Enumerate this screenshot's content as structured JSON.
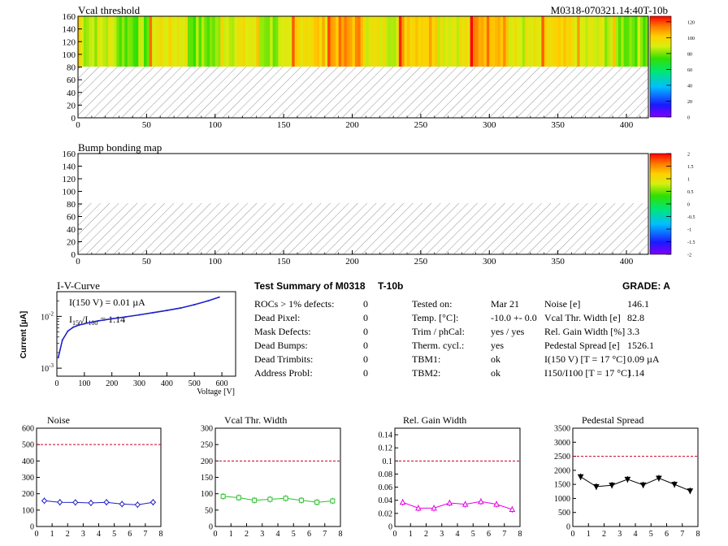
{
  "header": {
    "module_id": "M0318-070321.14:40T-10b"
  },
  "colors": {
    "hatch": "#7a7a7a",
    "noise_line": "#1e1ec8",
    "vcal_line": "#2fbf2f",
    "gain_line": "#e600e6",
    "ped_line": "#000000",
    "cut_line": "#c8001e",
    "iv_line": "#1e1ec8"
  },
  "heatmaps": [
    {
      "title": "Vcal threshold",
      "x_range": [
        0,
        416
      ],
      "y_range": [
        0,
        160
      ],
      "x_ticks": [
        "0",
        "50",
        "100",
        "150",
        "200",
        "250",
        "300",
        "350",
        "400"
      ],
      "y_ticks": [
        "0",
        "20",
        "40",
        "60",
        "80",
        "100",
        "120",
        "140",
        "160"
      ],
      "filled_rows": [
        80,
        160
      ],
      "roc_column_means": [
        88,
        80,
        94,
        80,
        92,
        84,
        100,
        108,
        92,
        104,
        94,
        110,
        90,
        96,
        88,
        82
      ],
      "palette_max": 127,
      "colorbar_ticks": [
        "0",
        "20",
        "40",
        "60",
        "80",
        "100",
        "120"
      ]
    },
    {
      "title": "Bump bonding map",
      "x_range": [
        0,
        416
      ],
      "y_range": [
        0,
        160
      ],
      "x_ticks": [
        "0",
        "50",
        "100",
        "150",
        "200",
        "250",
        "300",
        "350",
        "400"
      ],
      "y_ticks": [
        "0",
        "20",
        "40",
        "60",
        "80",
        "100",
        "120",
        "140",
        "160"
      ],
      "filled_rows": [
        80,
        160
      ],
      "palette_max": 2,
      "colorbar_ticks": [
        "-2",
        "-1.5",
        "-1",
        "-0.5",
        "0",
        "0.5",
        "1",
        "1.5",
        "2"
      ]
    }
  ],
  "iv_curve": {
    "title": "I-V-Curve",
    "ylabel": "Current [µA]",
    "xlabel": "Voltage [V]",
    "x_ticks": [
      "0",
      "100",
      "200",
      "300",
      "400",
      "500",
      "600"
    ],
    "annotation_1": "I(150 V) = 0.01 µA",
    "annotation_2a": "I",
    "annotation_2b": "150",
    "annotation_2c": "/I",
    "annotation_2d": "100",
    "annotation_2e": " = 1.14"
  },
  "summary": {
    "title": "Test Summary of M0318",
    "tag": "T-10b",
    "grade": "GRADE:  A",
    "left_rows": [
      {
        "label": "ROCs > 1% defects:",
        "value": "0"
      },
      {
        "label": "Dead Pixel:",
        "value": "0"
      },
      {
        "label": "Mask Defects:",
        "value": "0"
      },
      {
        "label": "Dead Bumps:",
        "value": "0"
      },
      {
        "label": "Dead Trimbits:",
        "value": "0"
      },
      {
        "label": "Address Probl:",
        "value": "0"
      }
    ],
    "mid_rows": [
      {
        "label": "Tested on:",
        "value": "Mar 21"
      },
      {
        "label": "Temp. [°C]:",
        "value": "-10.0 +- 0.0"
      },
      {
        "label": "Trim / phCal:",
        "value": "yes / yes"
      },
      {
        "label": "Therm. cycl.:",
        "value": "yes"
      },
      {
        "label": "TBM1:",
        "value": "ok"
      },
      {
        "label": "TBM2:",
        "value": "ok"
      }
    ],
    "right_rows": [
      {
        "label": "Noise [e]",
        "value": "146.1"
      },
      {
        "label": "Vcal Thr. Width [e]",
        "value": "82.8"
      },
      {
        "label": "Rel. Gain Width [%]",
        "value": "3.3"
      },
      {
        "label": "Pedestal Spread [e]",
        "value": "1526.1"
      },
      {
        "label": "I(150 V) [T = 17 °C]",
        "value": "0.09 µA"
      },
      {
        "label": "I150/I100  [T = 17 °C]",
        "value": "1.14"
      }
    ]
  },
  "chart_data": [
    {
      "type": "line",
      "title": "Noise",
      "x": [
        0.5,
        1.5,
        2.5,
        3.5,
        4.5,
        5.5,
        6.5,
        7.5
      ],
      "values": [
        157,
        148,
        147,
        144,
        148,
        137,
        133,
        148
      ],
      "threshold": 500,
      "ylim": [
        0,
        600
      ],
      "xlim": [
        0,
        8
      ],
      "y_ticks": [
        "0",
        "100",
        "200",
        "300",
        "400",
        "500",
        "600"
      ],
      "x_ticks": [
        "0",
        "1",
        "2",
        "3",
        "4",
        "5",
        "6",
        "7",
        "8"
      ]
    },
    {
      "type": "line",
      "title": "Vcal Thr. Width",
      "x": [
        0.5,
        1.5,
        2.5,
        3.5,
        4.5,
        5.5,
        6.5,
        7.5
      ],
      "values": [
        92,
        88,
        80,
        83,
        86,
        80,
        74,
        78
      ],
      "threshold": 200,
      "ylim": [
        0,
        300
      ],
      "xlim": [
        0,
        8
      ],
      "y_ticks": [
        "0",
        "50",
        "100",
        "150",
        "200",
        "250",
        "300"
      ],
      "x_ticks": [
        "0",
        "1",
        "2",
        "3",
        "4",
        "5",
        "6",
        "7",
        "8"
      ]
    },
    {
      "type": "line",
      "title": "Rel. Gain Width",
      "x": [
        0.5,
        1.5,
        2.5,
        3.5,
        4.5,
        5.5,
        6.5,
        7.5
      ],
      "values": [
        0.037,
        0.028,
        0.028,
        0.036,
        0.034,
        0.038,
        0.034,
        0.026
      ],
      "threshold": 0.1,
      "ylim": [
        0,
        0.15
      ],
      "xlim": [
        0,
        8
      ],
      "y_ticks": [
        "0",
        "0.02",
        "0.04",
        "0.06",
        "0.08",
        "0.1",
        "0.12",
        "0.14"
      ],
      "x_ticks": [
        "0",
        "1",
        "2",
        "3",
        "4",
        "5",
        "6",
        "7",
        "8"
      ]
    },
    {
      "type": "line",
      "title": "Pedestal Spread",
      "x": [
        0.5,
        1.5,
        2.5,
        3.5,
        4.5,
        5.5,
        6.5,
        7.5
      ],
      "values": [
        1770,
        1420,
        1470,
        1680,
        1480,
        1720,
        1500,
        1270
      ],
      "threshold": 2500,
      "ylim": [
        0,
        3500
      ],
      "xlim": [
        0,
        8
      ],
      "y_ticks": [
        "0",
        "500",
        "1000",
        "1500",
        "2000",
        "2500",
        "3000",
        "3500"
      ],
      "x_ticks": [
        "0",
        "1",
        "2",
        "3",
        "4",
        "5",
        "6",
        "7",
        "8"
      ]
    },
    {
      "type": "line",
      "title": "I-V-Curve",
      "x": [
        5,
        20,
        40,
        60,
        80,
        100,
        150,
        200,
        250,
        300,
        350,
        400,
        450,
        500,
        550,
        590
      ],
      "values": [
        0.0016,
        0.0035,
        0.0052,
        0.0062,
        0.0068,
        0.0072,
        0.0082,
        0.009,
        0.0098,
        0.0107,
        0.0118,
        0.013,
        0.0145,
        0.0168,
        0.02,
        0.0235
      ],
      "xlim": [
        0,
        650
      ],
      "ylim": [
        0.0007,
        0.03
      ],
      "log_y": true
    }
  ]
}
